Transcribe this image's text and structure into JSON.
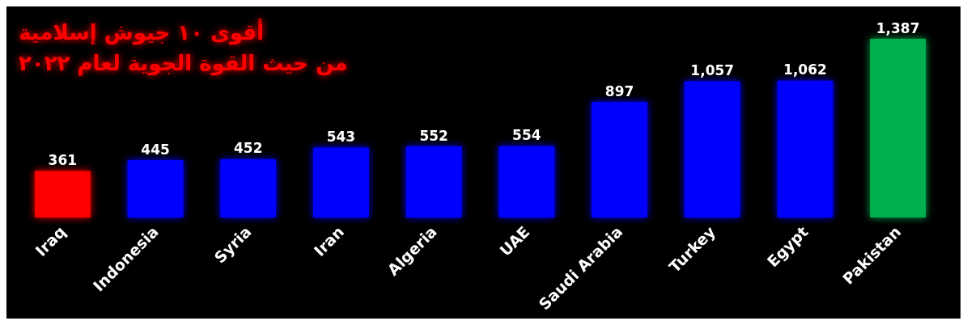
{
  "chart_data": {
    "type": "bar",
    "title": "أقوى ١٠ جيوش إسلامية\nمن حيث القوة الجوية لعام ٢٠٢٢",
    "categories": [
      "Iraq",
      "Indonesia",
      "Syria",
      "Iran",
      "Algeria",
      "UAE",
      "Saudi Arabia",
      "Turkey",
      "Egypt",
      "Pakistan"
    ],
    "values": [
      361,
      445,
      452,
      543,
      552,
      554,
      897,
      1057,
      1062,
      1387
    ],
    "colors": [
      "#ff0000",
      "#0000ff",
      "#0000ff",
      "#0000ff",
      "#0000ff",
      "#0000ff",
      "#0000ff",
      "#0000ff",
      "#0000ff",
      "#00b050"
    ],
    "value_labels": [
      "361",
      "445",
      "452",
      "543",
      "552",
      "554",
      "897",
      "1,057",
      "1,062",
      "1,387"
    ],
    "grid": false
  }
}
